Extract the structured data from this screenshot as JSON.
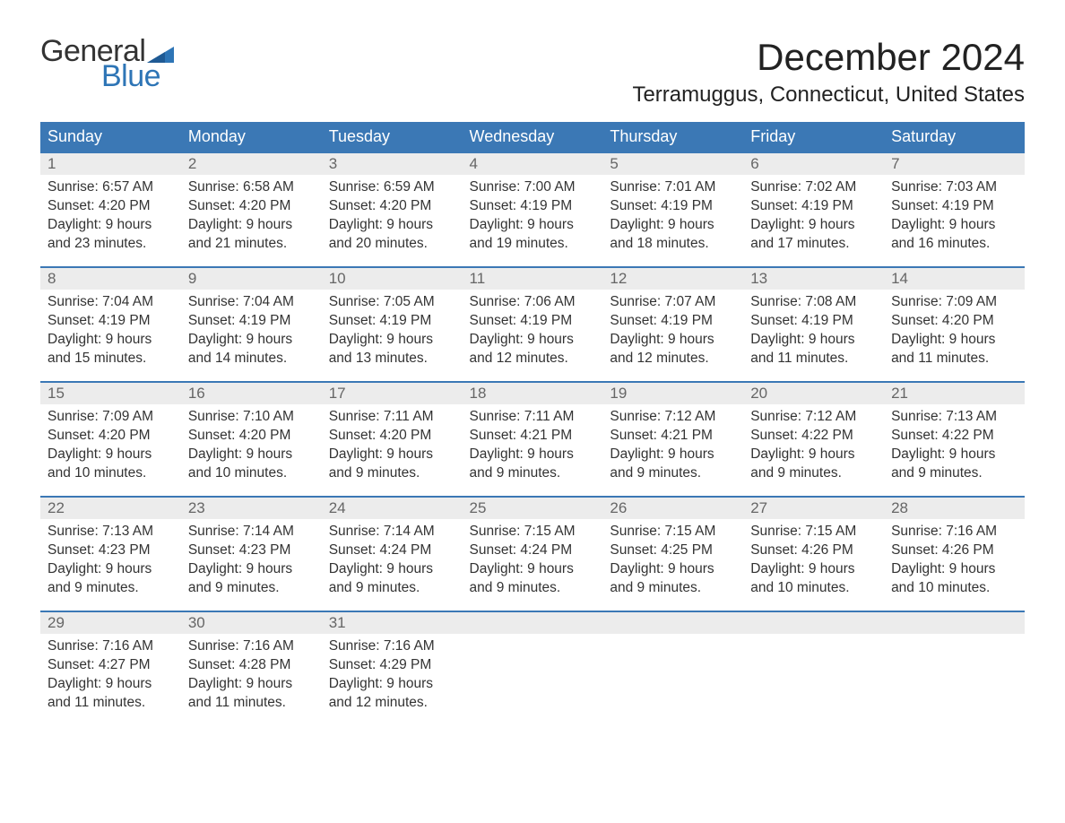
{
  "brand": {
    "word1": "General",
    "word2": "Blue"
  },
  "title": "December 2024",
  "location": "Terramuggus, Connecticut, United States",
  "colors": {
    "header_bg": "#3b78b5",
    "header_text": "#ffffff",
    "daynum_bg": "#ececec",
    "daynum_text": "#666666",
    "row_border": "#3b78b5",
    "body_text": "#333333",
    "logo_blue": "#2e75b6",
    "page_bg": "#ffffff"
  },
  "fonts": {
    "title_size_pt": 32,
    "location_size_pt": 18,
    "header_size_pt": 14,
    "body_size_pt": 12
  },
  "day_headers": [
    "Sunday",
    "Monday",
    "Tuesday",
    "Wednesday",
    "Thursday",
    "Friday",
    "Saturday"
  ],
  "weeks": [
    [
      {
        "n": "1",
        "sunrise": "Sunrise: 6:57 AM",
        "sunset": "Sunset: 4:20 PM",
        "d1": "Daylight: 9 hours",
        "d2": "and 23 minutes."
      },
      {
        "n": "2",
        "sunrise": "Sunrise: 6:58 AM",
        "sunset": "Sunset: 4:20 PM",
        "d1": "Daylight: 9 hours",
        "d2": "and 21 minutes."
      },
      {
        "n": "3",
        "sunrise": "Sunrise: 6:59 AM",
        "sunset": "Sunset: 4:20 PM",
        "d1": "Daylight: 9 hours",
        "d2": "and 20 minutes."
      },
      {
        "n": "4",
        "sunrise": "Sunrise: 7:00 AM",
        "sunset": "Sunset: 4:19 PM",
        "d1": "Daylight: 9 hours",
        "d2": "and 19 minutes."
      },
      {
        "n": "5",
        "sunrise": "Sunrise: 7:01 AM",
        "sunset": "Sunset: 4:19 PM",
        "d1": "Daylight: 9 hours",
        "d2": "and 18 minutes."
      },
      {
        "n": "6",
        "sunrise": "Sunrise: 7:02 AM",
        "sunset": "Sunset: 4:19 PM",
        "d1": "Daylight: 9 hours",
        "d2": "and 17 minutes."
      },
      {
        "n": "7",
        "sunrise": "Sunrise: 7:03 AM",
        "sunset": "Sunset: 4:19 PM",
        "d1": "Daylight: 9 hours",
        "d2": "and 16 minutes."
      }
    ],
    [
      {
        "n": "8",
        "sunrise": "Sunrise: 7:04 AM",
        "sunset": "Sunset: 4:19 PM",
        "d1": "Daylight: 9 hours",
        "d2": "and 15 minutes."
      },
      {
        "n": "9",
        "sunrise": "Sunrise: 7:04 AM",
        "sunset": "Sunset: 4:19 PM",
        "d1": "Daylight: 9 hours",
        "d2": "and 14 minutes."
      },
      {
        "n": "10",
        "sunrise": "Sunrise: 7:05 AM",
        "sunset": "Sunset: 4:19 PM",
        "d1": "Daylight: 9 hours",
        "d2": "and 13 minutes."
      },
      {
        "n": "11",
        "sunrise": "Sunrise: 7:06 AM",
        "sunset": "Sunset: 4:19 PM",
        "d1": "Daylight: 9 hours",
        "d2": "and 12 minutes."
      },
      {
        "n": "12",
        "sunrise": "Sunrise: 7:07 AM",
        "sunset": "Sunset: 4:19 PM",
        "d1": "Daylight: 9 hours",
        "d2": "and 12 minutes."
      },
      {
        "n": "13",
        "sunrise": "Sunrise: 7:08 AM",
        "sunset": "Sunset: 4:19 PM",
        "d1": "Daylight: 9 hours",
        "d2": "and 11 minutes."
      },
      {
        "n": "14",
        "sunrise": "Sunrise: 7:09 AM",
        "sunset": "Sunset: 4:20 PM",
        "d1": "Daylight: 9 hours",
        "d2": "and 11 minutes."
      }
    ],
    [
      {
        "n": "15",
        "sunrise": "Sunrise: 7:09 AM",
        "sunset": "Sunset: 4:20 PM",
        "d1": "Daylight: 9 hours",
        "d2": "and 10 minutes."
      },
      {
        "n": "16",
        "sunrise": "Sunrise: 7:10 AM",
        "sunset": "Sunset: 4:20 PM",
        "d1": "Daylight: 9 hours",
        "d2": "and 10 minutes."
      },
      {
        "n": "17",
        "sunrise": "Sunrise: 7:11 AM",
        "sunset": "Sunset: 4:20 PM",
        "d1": "Daylight: 9 hours",
        "d2": "and 9 minutes."
      },
      {
        "n": "18",
        "sunrise": "Sunrise: 7:11 AM",
        "sunset": "Sunset: 4:21 PM",
        "d1": "Daylight: 9 hours",
        "d2": "and 9 minutes."
      },
      {
        "n": "19",
        "sunrise": "Sunrise: 7:12 AM",
        "sunset": "Sunset: 4:21 PM",
        "d1": "Daylight: 9 hours",
        "d2": "and 9 minutes."
      },
      {
        "n": "20",
        "sunrise": "Sunrise: 7:12 AM",
        "sunset": "Sunset: 4:22 PM",
        "d1": "Daylight: 9 hours",
        "d2": "and 9 minutes."
      },
      {
        "n": "21",
        "sunrise": "Sunrise: 7:13 AM",
        "sunset": "Sunset: 4:22 PM",
        "d1": "Daylight: 9 hours",
        "d2": "and 9 minutes."
      }
    ],
    [
      {
        "n": "22",
        "sunrise": "Sunrise: 7:13 AM",
        "sunset": "Sunset: 4:23 PM",
        "d1": "Daylight: 9 hours",
        "d2": "and 9 minutes."
      },
      {
        "n": "23",
        "sunrise": "Sunrise: 7:14 AM",
        "sunset": "Sunset: 4:23 PM",
        "d1": "Daylight: 9 hours",
        "d2": "and 9 minutes."
      },
      {
        "n": "24",
        "sunrise": "Sunrise: 7:14 AM",
        "sunset": "Sunset: 4:24 PM",
        "d1": "Daylight: 9 hours",
        "d2": "and 9 minutes."
      },
      {
        "n": "25",
        "sunrise": "Sunrise: 7:15 AM",
        "sunset": "Sunset: 4:24 PM",
        "d1": "Daylight: 9 hours",
        "d2": "and 9 minutes."
      },
      {
        "n": "26",
        "sunrise": "Sunrise: 7:15 AM",
        "sunset": "Sunset: 4:25 PM",
        "d1": "Daylight: 9 hours",
        "d2": "and 9 minutes."
      },
      {
        "n": "27",
        "sunrise": "Sunrise: 7:15 AM",
        "sunset": "Sunset: 4:26 PM",
        "d1": "Daylight: 9 hours",
        "d2": "and 10 minutes."
      },
      {
        "n": "28",
        "sunrise": "Sunrise: 7:16 AM",
        "sunset": "Sunset: 4:26 PM",
        "d1": "Daylight: 9 hours",
        "d2": "and 10 minutes."
      }
    ],
    [
      {
        "n": "29",
        "sunrise": "Sunrise: 7:16 AM",
        "sunset": "Sunset: 4:27 PM",
        "d1": "Daylight: 9 hours",
        "d2": "and 11 minutes."
      },
      {
        "n": "30",
        "sunrise": "Sunrise: 7:16 AM",
        "sunset": "Sunset: 4:28 PM",
        "d1": "Daylight: 9 hours",
        "d2": "and 11 minutes."
      },
      {
        "n": "31",
        "sunrise": "Sunrise: 7:16 AM",
        "sunset": "Sunset: 4:29 PM",
        "d1": "Daylight: 9 hours",
        "d2": "and 12 minutes."
      },
      null,
      null,
      null,
      null
    ]
  ]
}
